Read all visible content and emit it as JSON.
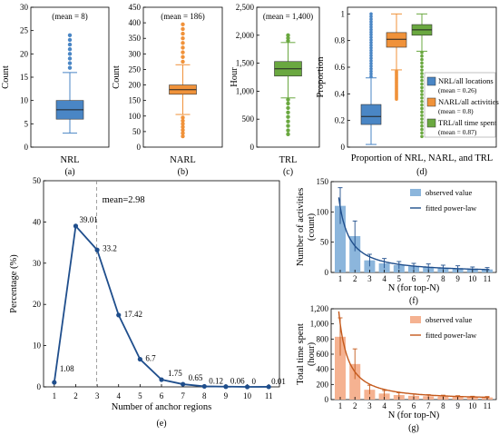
{
  "figure": {
    "panel_labels": [
      "(a)",
      "(b)",
      "(c)",
      "(d)",
      "(e)",
      "(f)",
      "(g)"
    ]
  },
  "colors": {
    "blue": "#4a86c5",
    "orange": "#f0923a",
    "green": "#6aa840",
    "navy": "#1f4e8c",
    "rust": "#c4591b",
    "bar_blue": "#8cb6dc",
    "bar_orange": "#f5b291"
  },
  "chart_data": [
    {
      "id": "a",
      "type": "box",
      "title": "",
      "annotation": "(mean = 8)",
      "xlabel": "NRL",
      "ylabel": "Count",
      "ylim": [
        0,
        30
      ],
      "yticks": [
        "0",
        "5",
        "10",
        "15",
        "20",
        "25",
        "30"
      ],
      "box": {
        "whisker_low": 3,
        "q1": 6,
        "median": 8,
        "q3": 10,
        "whisker_high": 16
      },
      "outliers": [
        17,
        18,
        19,
        20,
        21,
        22,
        23,
        24
      ],
      "color": "#4a86c5"
    },
    {
      "id": "b",
      "type": "box",
      "title": "",
      "annotation": "(mean = 186)",
      "xlabel": "NARL",
      "ylabel": "Count",
      "ylim": [
        0,
        450
      ],
      "yticks": [
        "0",
        "50",
        "100",
        "150",
        "200",
        "250",
        "300",
        "350",
        "400",
        "450"
      ],
      "box": {
        "whisker_low": 105,
        "q1": 170,
        "median": 185,
        "q3": 200,
        "whisker_high": 265
      },
      "outliers": [
        35,
        45,
        55,
        65,
        75,
        85,
        95,
        275,
        290,
        305,
        320,
        335,
        350,
        365,
        380,
        395
      ],
      "color": "#f0923a"
    },
    {
      "id": "c",
      "type": "box",
      "title": "",
      "annotation": "(mean = 1,400)",
      "xlabel": "TRL",
      "ylabel": "Hour",
      "ylim": [
        0,
        2500
      ],
      "yticks": [
        "0",
        "500",
        "1,000",
        "1,500",
        "2,000",
        "2,500"
      ],
      "box": {
        "whisker_low": 880,
        "q1": 1270,
        "median": 1400,
        "q3": 1530,
        "whisker_high": 1870
      },
      "outliers": [
        230,
        300,
        380,
        460,
        540,
        620,
        700,
        780,
        850,
        1900,
        1950,
        2000
      ],
      "color": "#6aa840"
    },
    {
      "id": "d",
      "type": "box",
      "title": "",
      "xlabel": "Proportion of NRL, NARL, and TRL",
      "ylabel": "Proportion",
      "ylim": [
        0,
        1.05
      ],
      "yticks": [
        "0",
        "0.2",
        "0.4",
        "0.6",
        "0.8",
        "1"
      ],
      "legend_position": "bottom-right",
      "series": [
        {
          "name": "NRL/all locations",
          "note": "(mean = 0.26)",
          "color": "#4a86c5",
          "box": {
            "whisker_low": 0.02,
            "q1": 0.17,
            "median": 0.23,
            "q3": 0.32,
            "whisker_high": 0.52
          },
          "outliers_range": [
            0.53,
            1.0
          ]
        },
        {
          "name": "NARL/all activities",
          "note": "(mean = 0.8)",
          "color": "#f0923a",
          "box": {
            "whisker_low": 0.58,
            "q1": 0.75,
            "median": 0.81,
            "q3": 0.86,
            "whisker_high": 1.0
          },
          "outliers_range": [
            0.36,
            0.57
          ]
        },
        {
          "name": "TRL/all time spent",
          "note": "(mean = 0.87)",
          "color": "#6aa840",
          "box": {
            "whisker_low": 0.72,
            "q1": 0.84,
            "median": 0.88,
            "q3": 0.92,
            "whisker_high": 1.0
          },
          "outliers_range": [
            0.08,
            0.71
          ]
        }
      ]
    },
    {
      "id": "e",
      "type": "line",
      "title": "",
      "xlabel": "Number of anchor regions",
      "ylabel": "Percentage (%)",
      "xlim": [
        0.5,
        11.5
      ],
      "ylim": [
        0,
        50
      ],
      "x": [
        1,
        2,
        3,
        4,
        5,
        6,
        7,
        8,
        9,
        10,
        11
      ],
      "y": [
        1.08,
        39.01,
        33.2,
        17.42,
        6.7,
        1.75,
        0.65,
        0.12,
        0.06,
        0,
        0.01
      ],
      "labels": [
        "1.08",
        "39.01",
        "33.2",
        "17.42",
        "6.7",
        "1.75",
        "0.65",
        "0.12",
        "0.06",
        "0",
        "0.01"
      ],
      "mean": 2.98,
      "mean_label": "mean=2.98",
      "color": "#1f4e8c",
      "xticks": [
        "1",
        "2",
        "3",
        "4",
        "5",
        "6",
        "7",
        "8",
        "9",
        "10",
        "11"
      ],
      "yticks": [
        "0",
        "10",
        "20",
        "30",
        "40",
        "50"
      ]
    },
    {
      "id": "f",
      "type": "bar",
      "title": "",
      "xlabel": "N (for top-N)",
      "ylabel": "Number of activities",
      "ylabel2": "(count)",
      "ylim": [
        0,
        150
      ],
      "categories": [
        "1",
        "2",
        "3",
        "4",
        "5",
        "6",
        "7",
        "8",
        "9",
        "10",
        "11"
      ],
      "values": [
        110,
        60,
        20,
        15,
        12,
        10,
        9,
        8,
        7,
        6,
        5
      ],
      "errors": [
        30,
        25,
        10,
        8,
        6,
        5,
        5,
        4,
        4,
        3,
        3
      ],
      "fit_a": 108,
      "fit_b": 1.3,
      "yticks": [
        "0",
        "50",
        "100",
        "150"
      ],
      "legend_position": "top-right",
      "series": [
        {
          "name": "observed value",
          "color": "#8cb6dc"
        },
        {
          "name": "fitted power-law",
          "color": "#1f4e8c"
        }
      ]
    },
    {
      "id": "g",
      "type": "bar",
      "title": "",
      "xlabel": "N (for top-N)",
      "ylabel": "Total time spent",
      "ylabel2": "(hour)",
      "ylim": [
        0,
        1200
      ],
      "categories": [
        "1",
        "2",
        "3",
        "4",
        "5",
        "6",
        "7",
        "8",
        "9",
        "10",
        "11"
      ],
      "values": [
        830,
        470,
        130,
        80,
        60,
        50,
        45,
        40,
        35,
        30,
        28
      ],
      "errors": [
        250,
        200,
        60,
        40,
        30,
        25,
        20,
        18,
        16,
        14,
        12
      ],
      "fit_a": 1000,
      "fit_b": 1.45,
      "yticks": [
        "0",
        "200",
        "400",
        "600",
        "800",
        "1,000",
        "1,200"
      ],
      "legend_position": "top-right",
      "series": [
        {
          "name": "observed value",
          "color": "#f5b291"
        },
        {
          "name": "fitted power-law",
          "color": "#c4591b"
        }
      ]
    }
  ]
}
